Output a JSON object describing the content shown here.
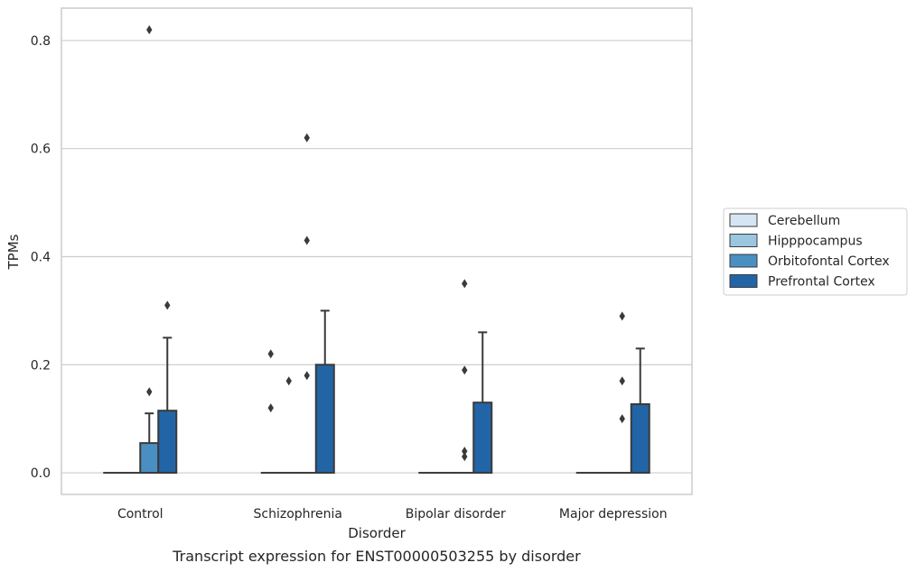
{
  "chart_data": {
    "type": "bar",
    "caption": "Transcript expression for ENST00000503255 by disorder",
    "xlabel": "Disorder",
    "ylabel": "TPMs",
    "ylim": [
      -0.04,
      0.86
    ],
    "yticks": [
      "0.0",
      "0.2",
      "0.4",
      "0.6",
      "0.8"
    ],
    "ytick_values": [
      0.0,
      0.2,
      0.4,
      0.6,
      0.8
    ],
    "grid": "horizontal",
    "legend_position": "right",
    "categories": [
      "Control",
      "Schizophrenia",
      "Bipolar disorder",
      "Major depression"
    ],
    "series": [
      {
        "name": "Cerebellum",
        "color": "#d6e5f4",
        "values": [
          0,
          0,
          0,
          0
        ],
        "whisker_upper": [
          0,
          0,
          0,
          0
        ],
        "outliers": [
          [],
          [
            0.12,
            0.22
          ],
          [],
          []
        ]
      },
      {
        "name": "Hipppocampus",
        "color": "#9bc6e0",
        "values": [
          0,
          0,
          0,
          0
        ],
        "whisker_upper": [
          0,
          0,
          0,
          0
        ],
        "outliers": [
          [],
          [
            0.17
          ],
          [],
          []
        ]
      },
      {
        "name": "Orbitofontal Cortex",
        "color": "#4a8fc2",
        "values": [
          0.055,
          0,
          0,
          0
        ],
        "whisker_upper": [
          0.11,
          0,
          0,
          0
        ],
        "outliers": [
          [
            0.82,
            0.15
          ],
          [
            0.18,
            0.43,
            0.62
          ],
          [
            0.35,
            0.19,
            0.04,
            0.03
          ],
          [
            0.29,
            0.17,
            0.1
          ]
        ]
      },
      {
        "name": "Prefrontal Cortex",
        "color": "#2265a6",
        "values": [
          0.115,
          0.2,
          0.13,
          0.127
        ],
        "whisker_upper": [
          0.25,
          0.3,
          0.26,
          0.23
        ],
        "outliers": [
          [
            0.31
          ],
          [],
          [],
          []
        ]
      }
    ]
  }
}
